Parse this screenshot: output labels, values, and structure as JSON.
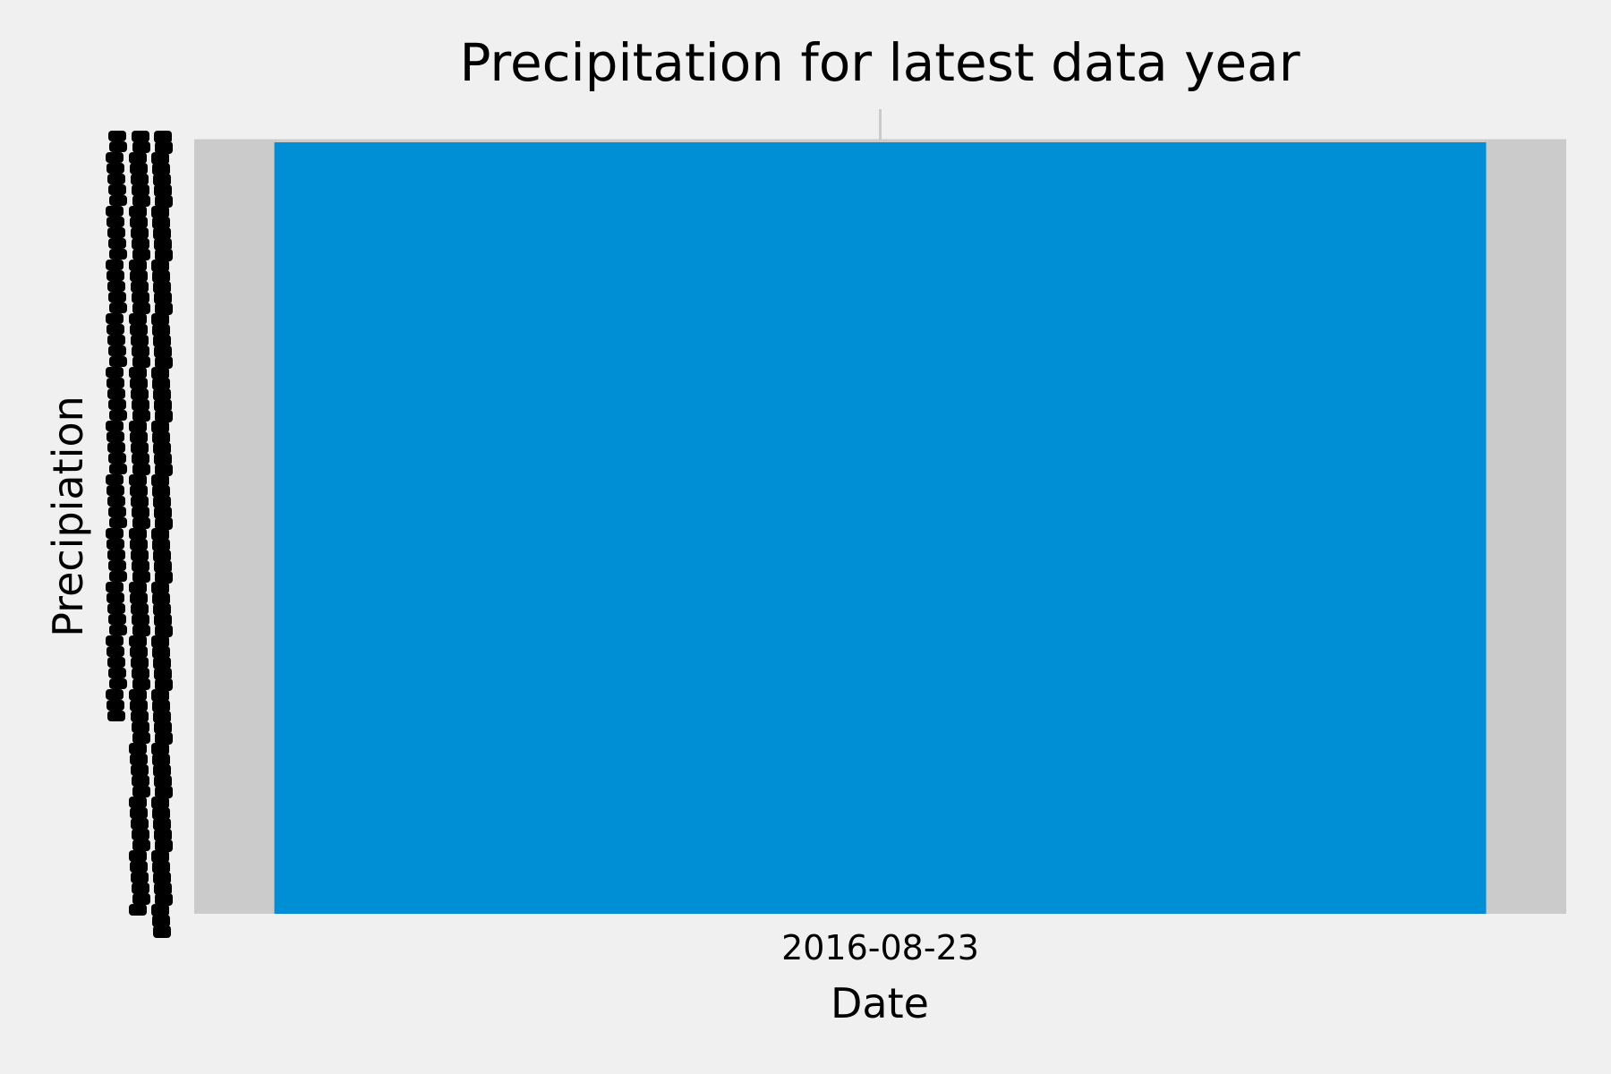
{
  "chart_data": {
    "type": "bar",
    "title": "Precipitation for latest data year",
    "xlabel": "Date",
    "ylabel": "Precipiation",
    "categories": [
      "2016-08-23"
    ],
    "grid": true,
    "colors": {
      "background": "#f0f0f0",
      "bar": "#008fd5",
      "grid": "#cbcbcb",
      "text": "#000000"
    },
    "y_tick_labels_note": "unreadable",
    "series": [
      {
        "values": [
          null
        ]
      }
    ]
  }
}
